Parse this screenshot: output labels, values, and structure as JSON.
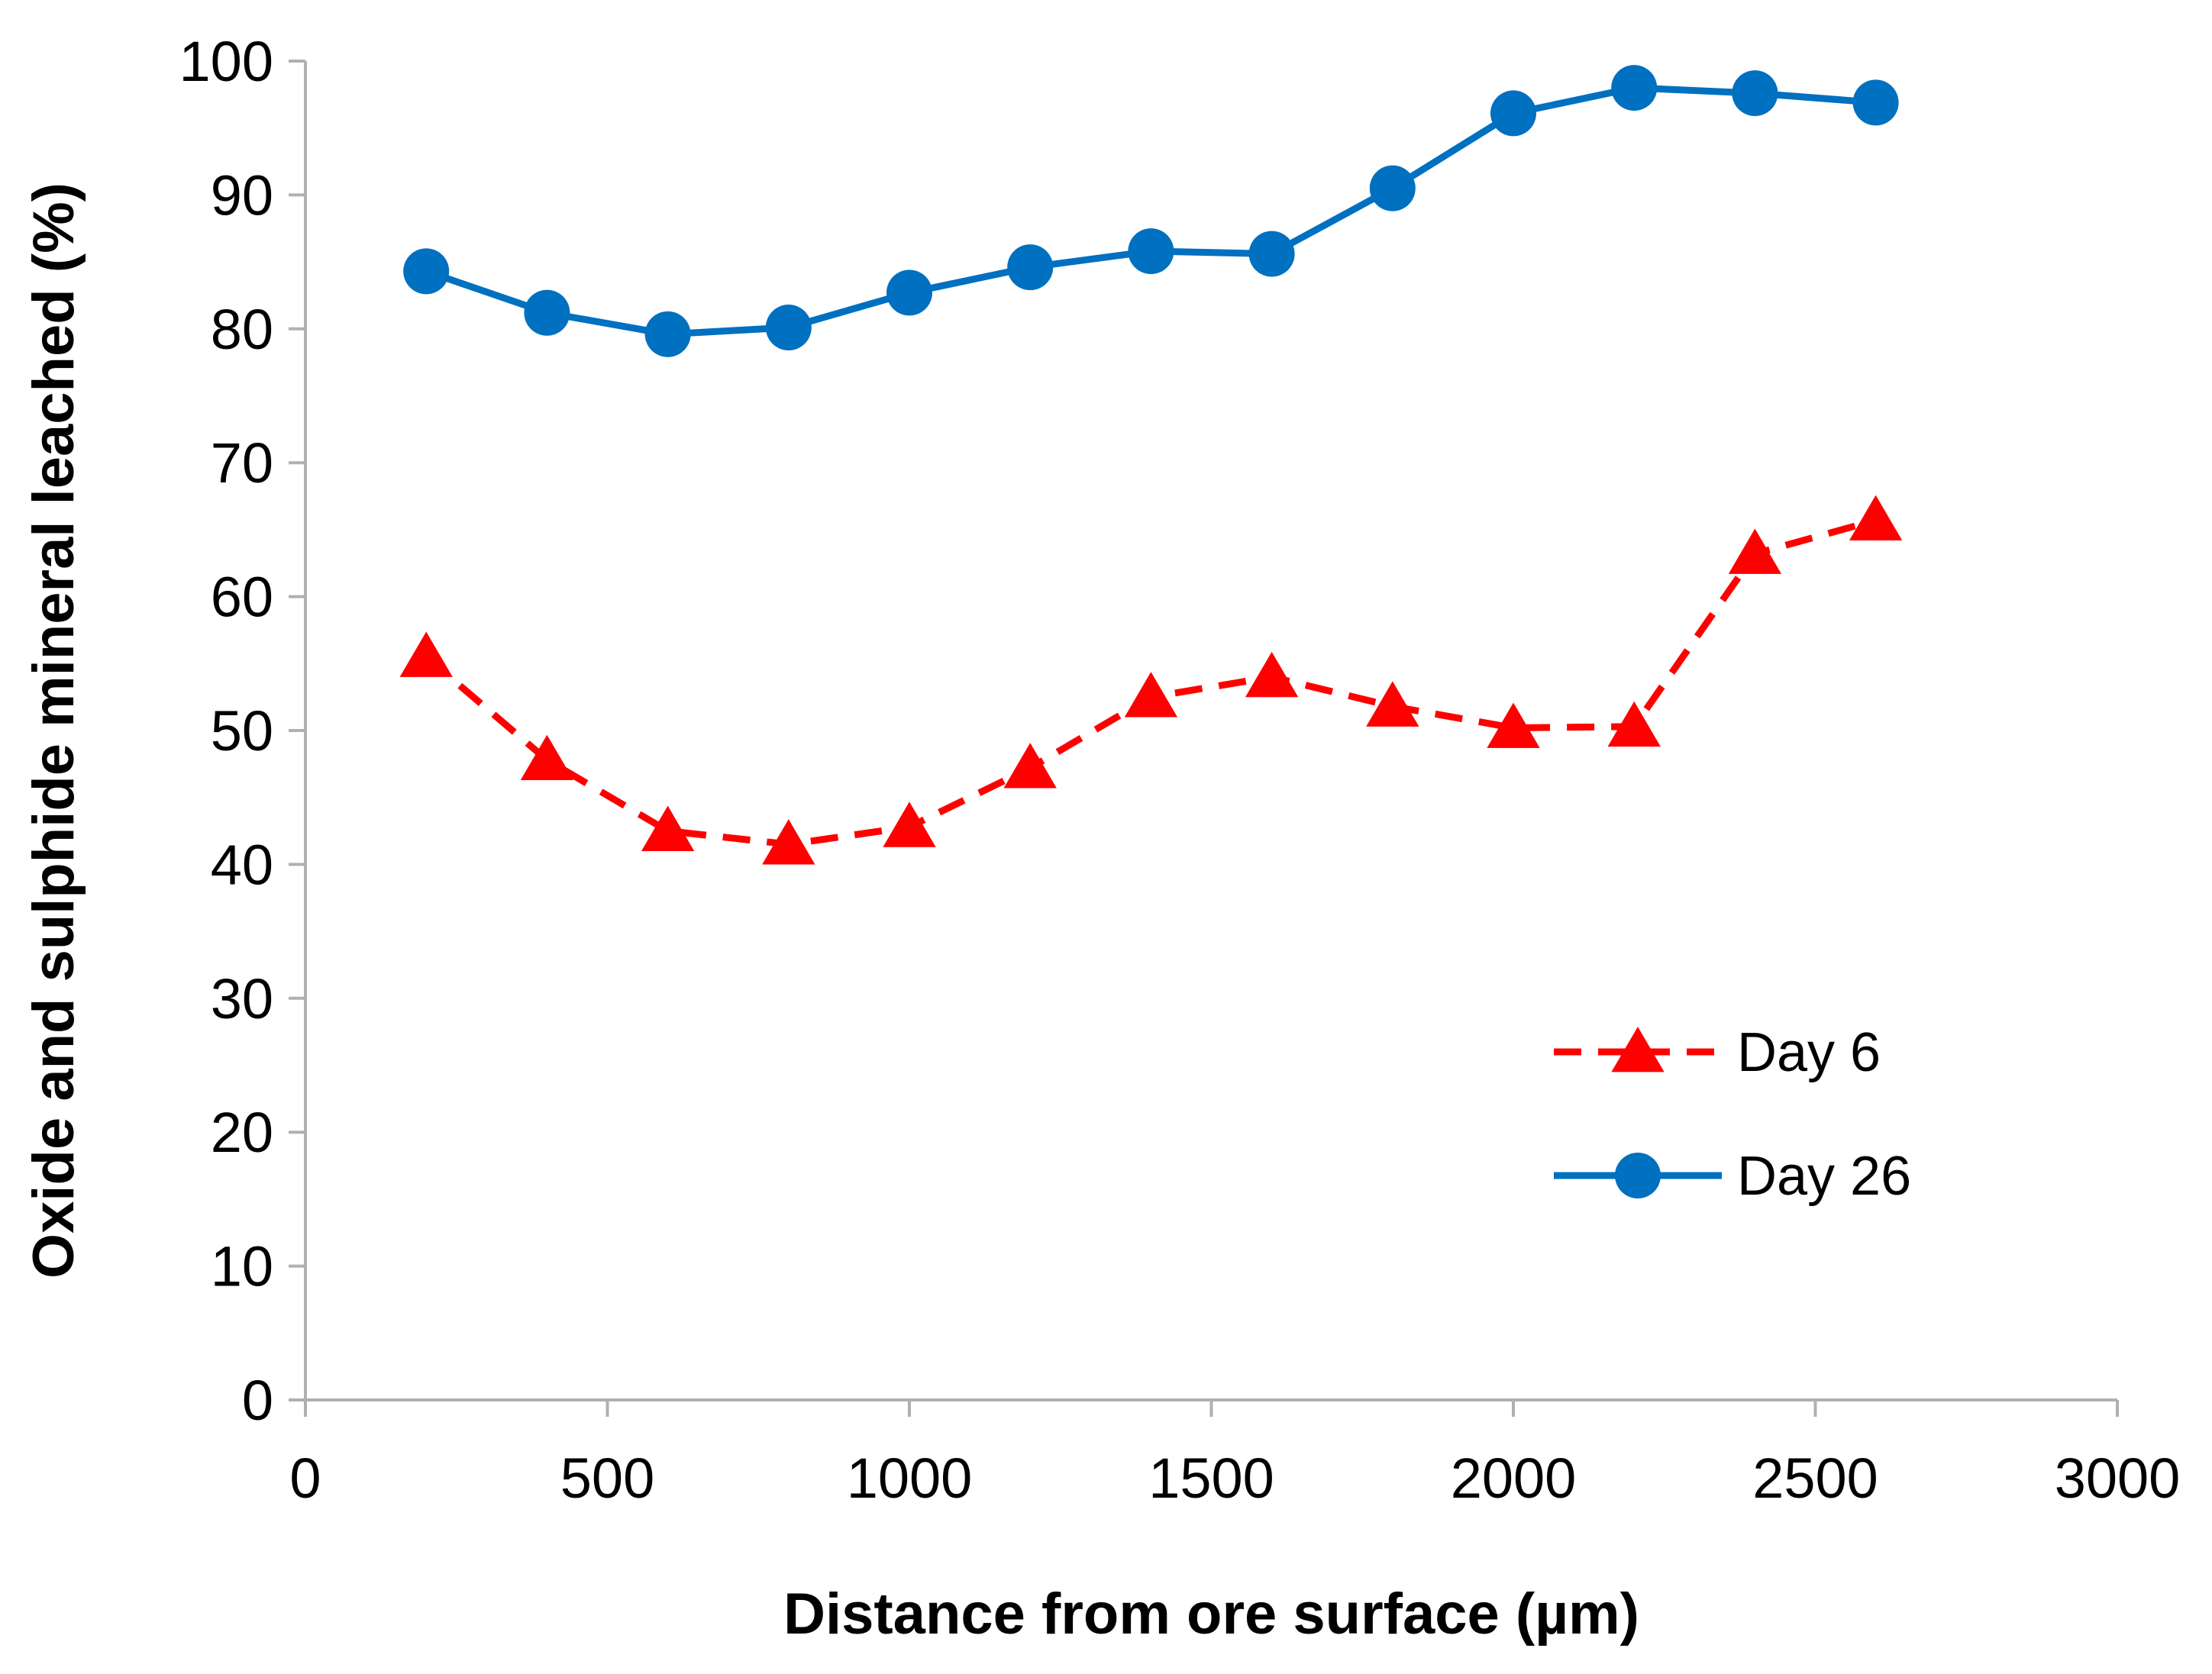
{
  "chart_data": {
    "type": "line",
    "title": "",
    "xlabel": "Distance from ore surface (µm)",
    "ylabel": "Oxide and sulphide mineral leached (%)",
    "xlim": [
      0,
      3000
    ],
    "ylim": [
      0,
      100
    ],
    "x_ticks": [
      0,
      500,
      1000,
      1500,
      2000,
      2500,
      3000
    ],
    "y_ticks": [
      0,
      10,
      20,
      30,
      40,
      50,
      60,
      70,
      80,
      90,
      100
    ],
    "grid": false,
    "legend_position": "right-center",
    "x": [
      200,
      400,
      600,
      800,
      1000,
      1200,
      1400,
      1600,
      1800,
      2000,
      2200,
      2400,
      2600
    ],
    "series": [
      {
        "name": "Day 6",
        "color": "#FF0000",
        "line_style": "dashed",
        "marker": "triangle",
        "values": [
          55.5,
          47.8,
          42.5,
          41.5,
          42.8,
          47.2,
          52.5,
          54.0,
          51.8,
          50.2,
          50.3,
          63.2,
          65.7
        ]
      },
      {
        "name": "Day 26",
        "color": "#0070C0",
        "line_style": "solid",
        "marker": "circle",
        "values": [
          84.3,
          81.2,
          79.6,
          80.1,
          82.7,
          84.6,
          85.8,
          85.6,
          90.5,
          96.1,
          98.0,
          97.6,
          96.9
        ]
      }
    ]
  }
}
